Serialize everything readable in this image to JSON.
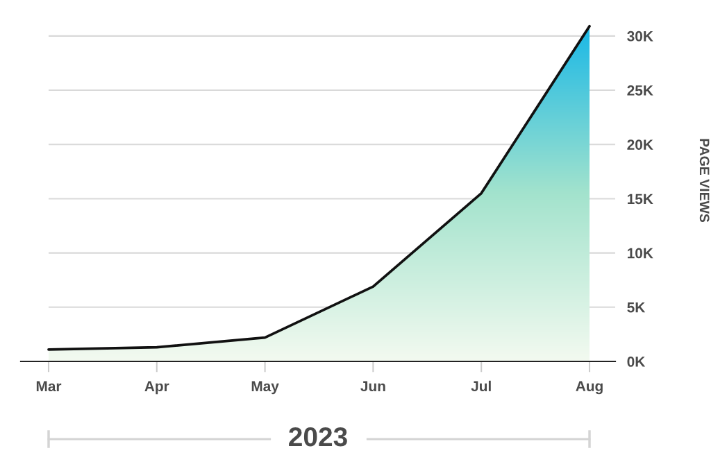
{
  "chart_data": {
    "type": "area",
    "xlabel": "2023",
    "ylabel": "PAGE VIEWS",
    "categories": [
      "Mar",
      "Apr",
      "May",
      "Jun",
      "Jul",
      "Aug"
    ],
    "series": [
      {
        "color": "#1ab8e6",
        "values": [
          1100,
          1300,
          2200,
          6900,
          15500,
          30900
        ]
      }
    ],
    "ylim": [
      0,
      31000
    ],
    "yticks": [
      {
        "value": 0,
        "label": "0K"
      },
      {
        "value": 5000,
        "label": "5K"
      },
      {
        "value": 10000,
        "label": "10K"
      },
      {
        "value": 15000,
        "label": "15K"
      },
      {
        "value": 20000,
        "label": "20K"
      },
      {
        "value": 25000,
        "label": "25K"
      },
      {
        "value": 30000,
        "label": "30K"
      }
    ],
    "grid": "y"
  }
}
